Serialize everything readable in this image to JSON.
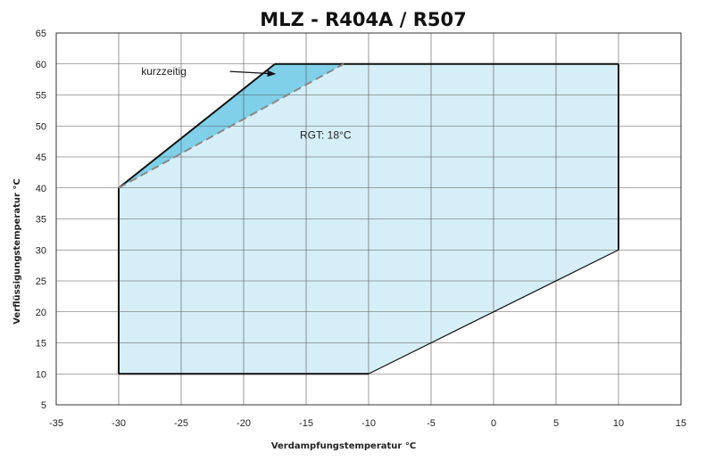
{
  "chart_data": {
    "type": "area",
    "title": "MLZ - R404A / R507",
    "xlabel": "Verdampfungstemperatur °C",
    "ylabel": "Verflüssigungstemperatur °C",
    "xlim": [
      -35,
      15
    ],
    "ylim": [
      5,
      65
    ],
    "x_ticks": [
      -35,
      -30,
      -25,
      -20,
      -15,
      -10,
      -5,
      0,
      5,
      10,
      15
    ],
    "y_ticks": [
      5,
      10,
      15,
      20,
      25,
      30,
      35,
      40,
      45,
      50,
      55,
      60,
      65
    ],
    "grid": true,
    "regions": [
      {
        "id": "main",
        "fill": "#d6eef8",
        "points": [
          [
            -30,
            10
          ],
          [
            -30,
            40
          ],
          [
            -17.5,
            60
          ],
          [
            10,
            60
          ],
          [
            10,
            30
          ],
          [
            -10,
            10
          ]
        ]
      },
      {
        "id": "short-term",
        "fill": "#7fd0e8",
        "points": [
          [
            -30,
            40
          ],
          [
            -17.5,
            60
          ],
          [
            -12,
            60
          ]
        ]
      }
    ],
    "boundary_solid": [
      [
        -30,
        10
      ],
      [
        -30,
        40
      ],
      [
        -17.5,
        60
      ],
      [
        10,
        60
      ],
      [
        10,
        30
      ],
      [
        -10,
        10
      ],
      [
        -30,
        10
      ]
    ],
    "boundary_dashed": [
      [
        -30,
        40
      ],
      [
        -12,
        60
      ]
    ],
    "annotations": [
      {
        "text": "kurzzeitig",
        "x": -28.2,
        "y": 58.8,
        "arrow_from": [
          -21.1,
          58.8
        ],
        "arrow_to": [
          -17.5,
          58.4
        ]
      },
      {
        "text": "RGT: 18°C",
        "x": -15.5,
        "y": 48.5
      }
    ]
  }
}
